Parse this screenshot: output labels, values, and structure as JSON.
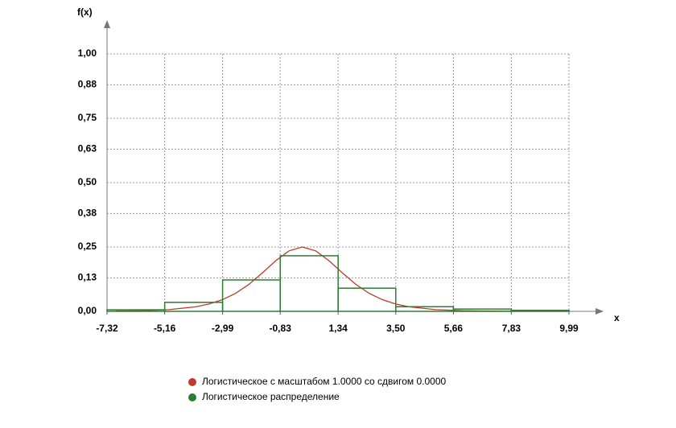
{
  "chart_data": {
    "type": "histogram",
    "x_label": "x",
    "y_label": "f(x)",
    "xlim": [
      -7.32,
      9.99
    ],
    "xticks": [
      {
        "value": -7.32,
        "label": "-7,32"
      },
      {
        "value": -5.16,
        "label": "-5,16"
      },
      {
        "value": -2.99,
        "label": "-2,99"
      },
      {
        "value": -0.83,
        "label": "-0,83"
      },
      {
        "value": 1.34,
        "label": "1,34"
      },
      {
        "value": 3.5,
        "label": "3,50"
      },
      {
        "value": 5.66,
        "label": "5,66"
      },
      {
        "value": 7.83,
        "label": "7,83"
      },
      {
        "value": 9.99,
        "label": "9,99"
      }
    ],
    "ylim": [
      0,
      1
    ],
    "yticks": [
      {
        "value": 0,
        "label": "0,00"
      },
      {
        "value": 0.13,
        "label": "0,13"
      },
      {
        "value": 0.25,
        "label": "0,25"
      },
      {
        "value": 0.38,
        "label": "0,38"
      },
      {
        "value": 0.5,
        "label": "0,50"
      },
      {
        "value": 0.63,
        "label": "0,63"
      },
      {
        "value": 0.75,
        "label": "0,75"
      },
      {
        "value": 0.88,
        "label": "0,88"
      },
      {
        "value": 1,
        "label": "1,00"
      }
    ],
    "grid": true,
    "series": [
      {
        "name": "Логистическое с масштабом 1.0000 со сдвигом 0.0000",
        "color": "#c0392b",
        "type": "line",
        "x": [
          -7,
          -6,
          -5,
          -4,
          -3.5,
          -3,
          -2.5,
          -2,
          -1.5,
          -1,
          -0.5,
          0,
          0.5,
          1,
          1.5,
          2,
          2.5,
          3,
          3.5,
          4,
          5,
          6,
          7,
          8
        ],
        "values": [
          0.0009,
          0.0025,
          0.0066,
          0.0177,
          0.0285,
          0.0452,
          0.0701,
          0.105,
          0.1491,
          0.1966,
          0.235,
          0.25,
          0.235,
          0.1966,
          0.1491,
          0.105,
          0.0701,
          0.0452,
          0.0285,
          0.0177,
          0.0066,
          0.0025,
          0.0009,
          0.0003
        ]
      },
      {
        "name": "Логистическое распределение",
        "color": "#2e7d32",
        "type": "histogram",
        "bins": [
          -7.32,
          -5.16,
          -2.99,
          -0.83,
          1.34,
          3.5,
          5.66,
          7.83,
          9.99
        ],
        "values": [
          0.006,
          0.035,
          0.122,
          0.216,
          0.09,
          0.018,
          0.009,
          0.004
        ]
      }
    ]
  }
}
